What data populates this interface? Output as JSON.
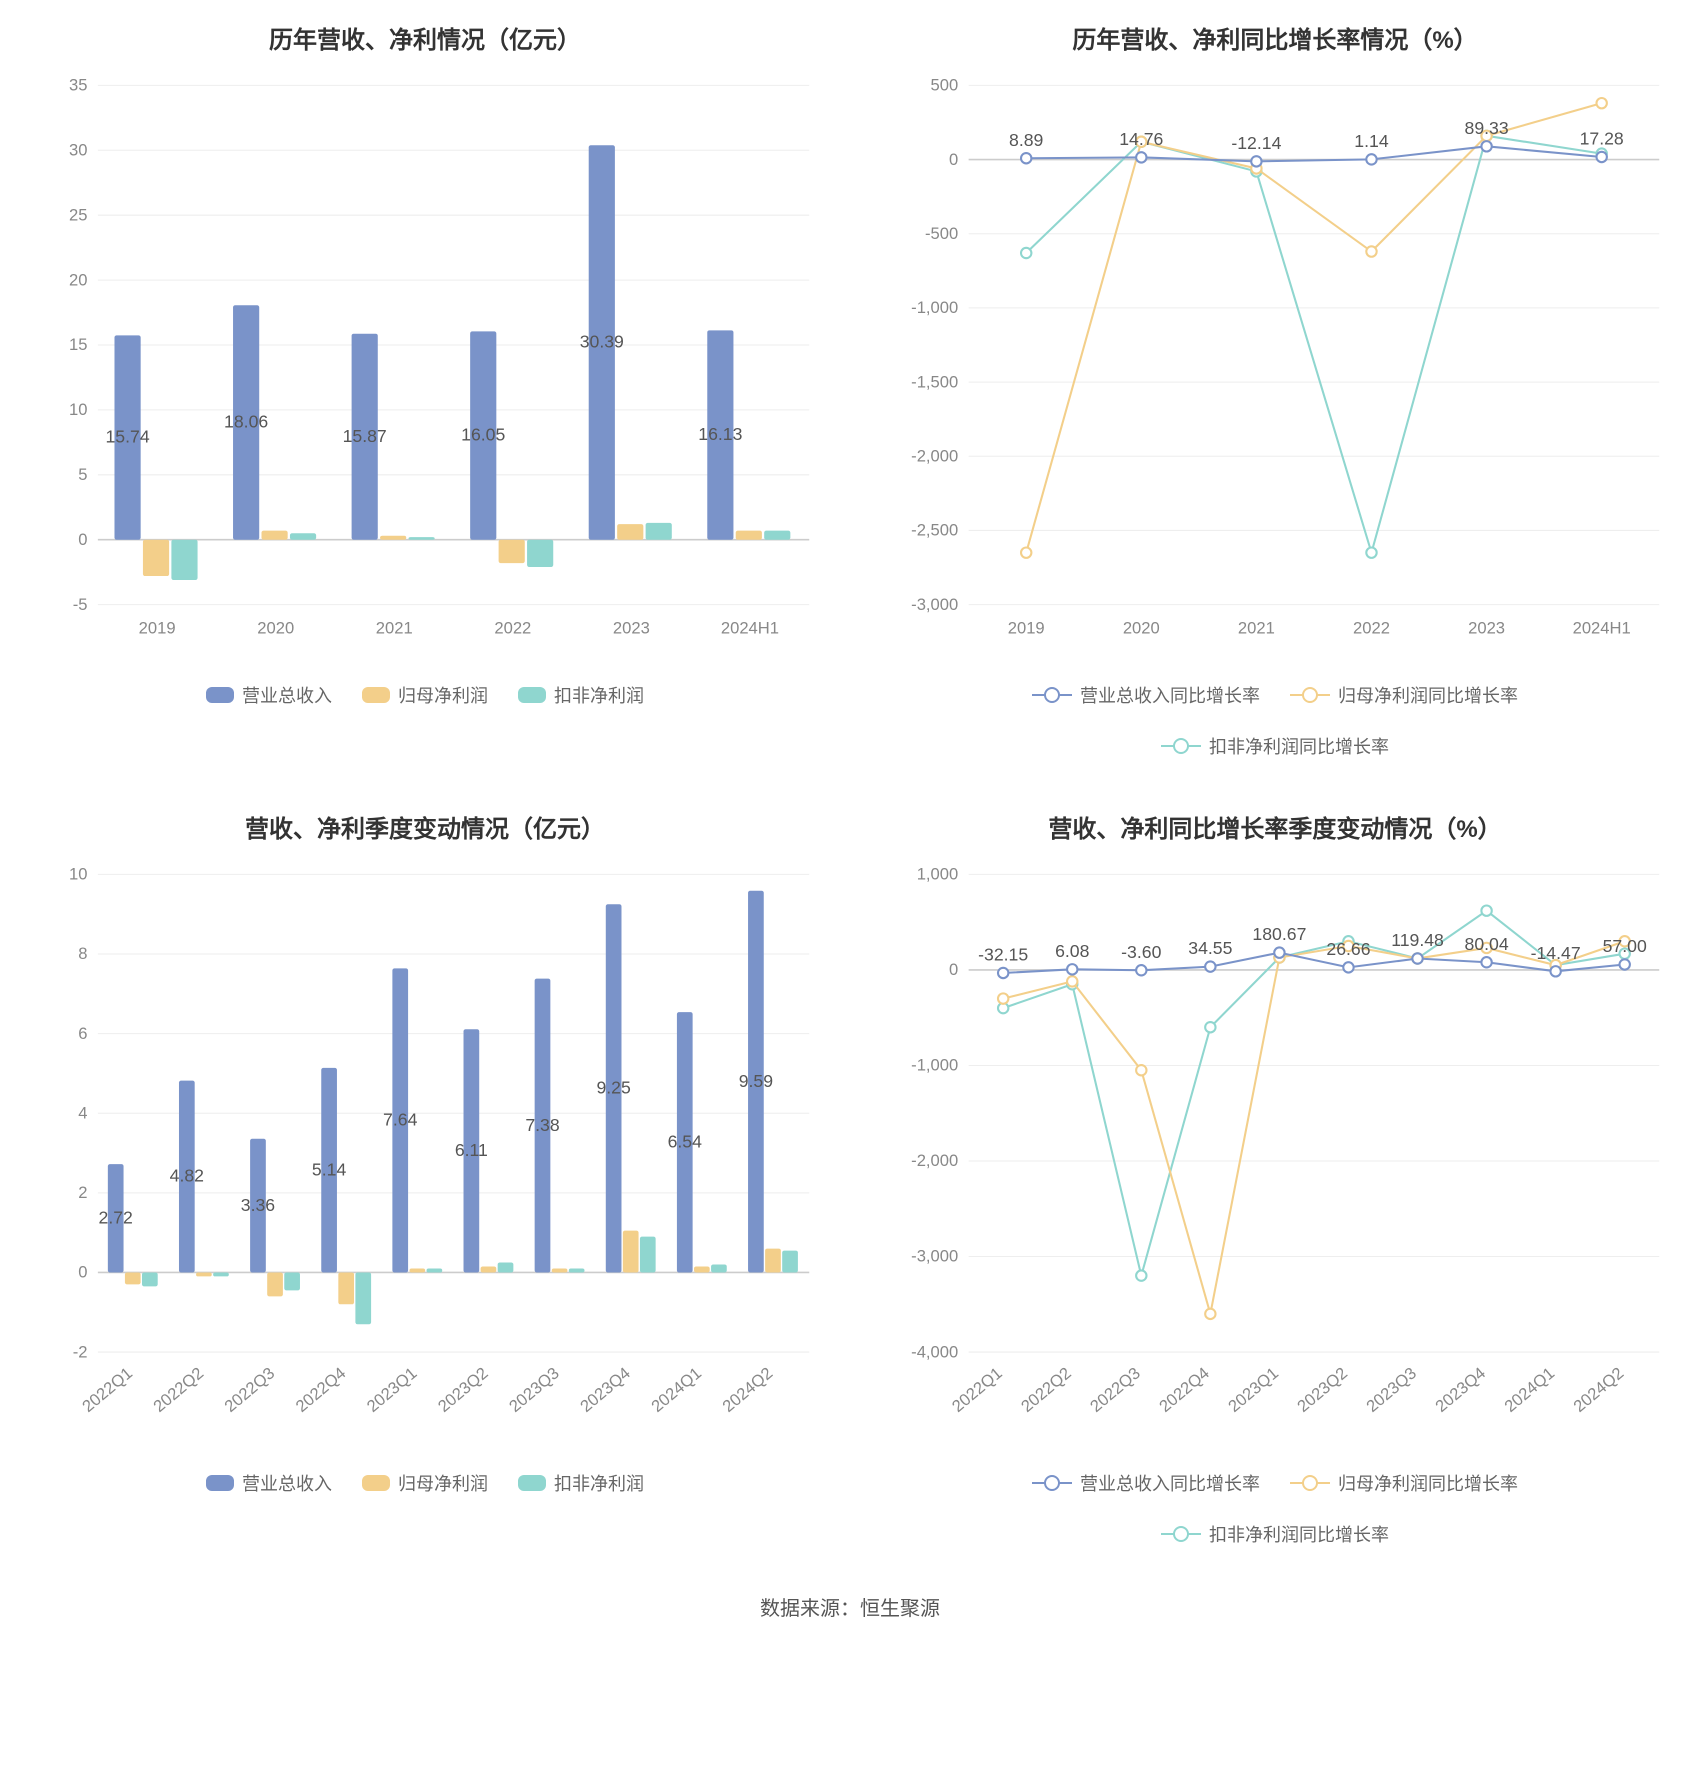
{
  "colors": {
    "revenue": "#7a93c9",
    "netprofit": "#f3cf8a",
    "nonrecurring": "#8fd6cf",
    "grid": "#eeeeee",
    "axis": "#cccccc",
    "text": "#888888",
    "bg": "#ffffff"
  },
  "source_text": "数据来源：恒生聚源",
  "chart1": {
    "title": "历年营收、净利情况（亿元）",
    "type": "bar",
    "categories": [
      "2019",
      "2020",
      "2021",
      "2022",
      "2023",
      "2024H1"
    ],
    "series": [
      {
        "name": "营业总收入",
        "color_key": "revenue",
        "values": [
          15.74,
          18.06,
          15.87,
          16.05,
          30.39,
          16.13
        ]
      },
      {
        "name": "归母净利润",
        "color_key": "netprofit",
        "values": [
          -2.8,
          0.7,
          0.3,
          -1.8,
          1.2,
          0.7
        ]
      },
      {
        "name": "扣非净利润",
        "color_key": "nonrecurring",
        "values": [
          -3.1,
          0.5,
          0.2,
          -2.1,
          1.3,
          0.7
        ]
      }
    ],
    "labels": [
      15.74,
      18.06,
      15.87,
      16.05,
      30.39,
      16.13
    ],
    "ylim": [
      -5,
      35
    ],
    "yticks": [
      -5,
      0,
      5,
      10,
      15,
      20,
      25,
      30,
      35
    ],
    "bar_group_width": 0.72,
    "title_fontsize": 24,
    "label_fontsize": 17
  },
  "chart2": {
    "title": "历年营收、净利同比增长率情况（%）",
    "type": "line",
    "categories": [
      "2019",
      "2020",
      "2021",
      "2022",
      "2023",
      "2024H1"
    ],
    "series": [
      {
        "name": "营业总收入同比增长率",
        "color_key": "revenue",
        "values": [
          8.89,
          14.76,
          -12.14,
          1.14,
          89.33,
          17.28
        ]
      },
      {
        "name": "归母净利润同比增长率",
        "color_key": "netprofit",
        "values": [
          -2650,
          120,
          -60,
          -620,
          160,
          380
        ]
      },
      {
        "name": "扣非净利润同比增长率",
        "color_key": "nonrecurring",
        "values": [
          -630,
          120,
          -80,
          -2650,
          160,
          40
        ]
      }
    ],
    "labels": [
      8.89,
      14.76,
      -12.14,
      1.14,
      89.33,
      17.28
    ],
    "ylim": [
      -3000,
      500
    ],
    "yticks": [
      -3000,
      -2500,
      -2000,
      -1500,
      -1000,
      -500,
      0,
      500
    ],
    "marker_radius": 5,
    "line_width": 2
  },
  "chart3": {
    "title": "营收、净利季度变动情况（亿元）",
    "type": "bar",
    "categories": [
      "2022Q1",
      "2022Q2",
      "2022Q3",
      "2022Q4",
      "2023Q1",
      "2023Q2",
      "2023Q3",
      "2023Q4",
      "2024Q1",
      "2024Q2"
    ],
    "series": [
      {
        "name": "营业总收入",
        "color_key": "revenue",
        "values": [
          2.72,
          4.82,
          3.36,
          5.14,
          7.64,
          6.11,
          7.38,
          9.25,
          6.54,
          9.59
        ]
      },
      {
        "name": "归母净利润",
        "color_key": "netprofit",
        "values": [
          -0.3,
          -0.1,
          -0.6,
          -0.8,
          0.1,
          0.15,
          0.1,
          1.05,
          0.15,
          0.6
        ]
      },
      {
        "name": "扣非净利润",
        "color_key": "nonrecurring",
        "values": [
          -0.35,
          -0.1,
          -0.45,
          -1.3,
          0.1,
          0.25,
          0.1,
          0.9,
          0.2,
          0.55
        ]
      }
    ],
    "labels": [
      2.72,
      4.82,
      3.36,
      5.14,
      7.64,
      6.11,
      7.38,
      9.25,
      6.54,
      9.59
    ],
    "ylim": [
      -2,
      10
    ],
    "yticks": [
      -2,
      0,
      2,
      4,
      6,
      8,
      10
    ],
    "bar_group_width": 0.72,
    "rotate_xlabels": true
  },
  "chart4": {
    "title": "营收、净利同比增长率季度变动情况（%）",
    "type": "line",
    "categories": [
      "2022Q1",
      "2022Q2",
      "2022Q3",
      "2022Q4",
      "2023Q1",
      "2023Q2",
      "2023Q3",
      "2023Q4",
      "2024Q1",
      "2024Q2"
    ],
    "series": [
      {
        "name": "营业总收入同比增长率",
        "color_key": "revenue",
        "values": [
          -32.15,
          6.08,
          -3.6,
          34.55,
          180.67,
          26.66,
          119.48,
          80.04,
          -14.47,
          57.0
        ]
      },
      {
        "name": "归母净利润同比增长率",
        "color_key": "netprofit",
        "values": [
          -300,
          -120,
          -1050,
          -3600,
          130,
          250,
          120,
          230,
          50,
          300
        ]
      },
      {
        "name": "扣非净利润同比增长率",
        "color_key": "nonrecurring",
        "values": [
          -400,
          -150,
          -3200,
          -600,
          130,
          300,
          120,
          620,
          50,
          170
        ]
      }
    ],
    "labels": [
      -32.15,
      6.08,
      -3.6,
      34.55,
      180.67,
      26.66,
      119.48,
      80.04,
      -14.47,
      57.0
    ],
    "ylim": [
      -4000,
      1000
    ],
    "yticks": [
      -4000,
      -3000,
      -2000,
      -1000,
      0,
      1000
    ],
    "rotate_xlabels": true,
    "marker_radius": 5,
    "line_width": 2
  }
}
